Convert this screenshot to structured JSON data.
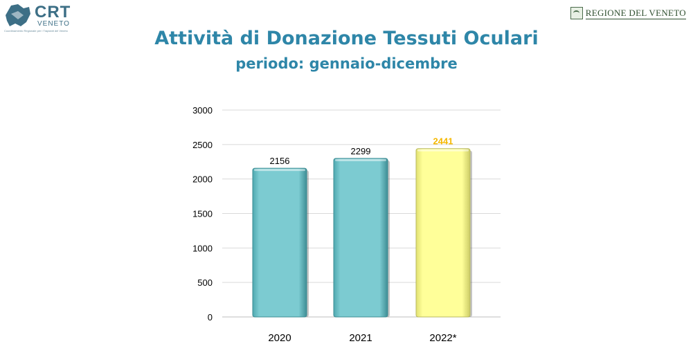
{
  "header": {
    "crt_logo": {
      "name": "CRT",
      "sub": "VENETO",
      "tagline": "Coordinamento Regionale per i Trapianti del Veneto"
    },
    "region_logo": {
      "text": "REGIONE DEL VENETO"
    },
    "title": "Attività di Donazione Tessuti Oculari",
    "subtitle": "periodo: gennaio-dicembre"
  },
  "chart_data": {
    "type": "bar",
    "categories": [
      "2020",
      "2021",
      "2022*"
    ],
    "values": [
      2156,
      2299,
      2441
    ],
    "data_labels": [
      "2156",
      "2299",
      "2441"
    ],
    "ylim": [
      0,
      3000
    ],
    "yticks": [
      "0",
      "500",
      "1000",
      "1500",
      "2000",
      "2500",
      "3000"
    ],
    "grid": true,
    "colors": [
      "#7ccbd1",
      "#7ccbd1",
      "#ffff99"
    ],
    "label_colors": [
      "#000000",
      "#000000",
      "#f5b800"
    ]
  }
}
